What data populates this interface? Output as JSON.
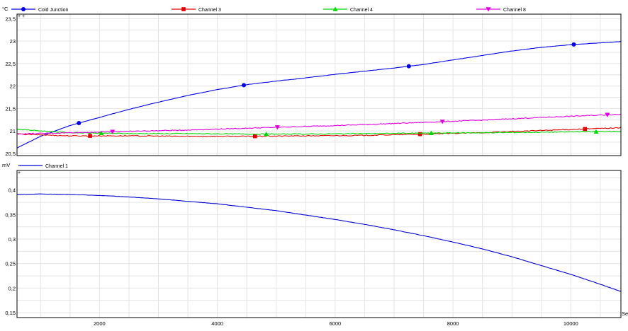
{
  "chart_data": [
    {
      "type": "line",
      "unit": "°C",
      "xlim": [
        600,
        10850
      ],
      "ylim": [
        20.45,
        23.6
      ],
      "y_ticks": [
        20.5,
        21,
        21.5,
        22,
        22.5,
        23,
        23.5
      ],
      "y_tick_labels": [
        "20,5",
        "21",
        "21,5",
        "22",
        "22,5",
        "23",
        "23,5"
      ],
      "grid": true,
      "legend_position": "top",
      "series": [
        {
          "name": "Cold Junction",
          "color": "#0000e0",
          "marker": "circle",
          "x": [
            600,
            1000,
            1500,
            2000,
            2500,
            3000,
            3500,
            4000,
            4500,
            5000,
            5500,
            6000,
            6500,
            7000,
            7500,
            8000,
            8500,
            9000,
            9500,
            10000,
            10500,
            10850
          ],
          "y": [
            20.62,
            20.88,
            21.12,
            21.3,
            21.48,
            21.64,
            21.79,
            21.92,
            22.03,
            22.11,
            22.18,
            22.26,
            22.33,
            22.4,
            22.48,
            22.58,
            22.68,
            22.78,
            22.86,
            22.92,
            22.96,
            22.99
          ]
        },
        {
          "name": "Channel 3",
          "color": "#e00000",
          "marker": "square",
          "x": [
            600,
            1500,
            2500,
            3500,
            4500,
            5500,
            6500,
            7500,
            8500,
            9500,
            10850
          ],
          "y": [
            20.93,
            20.89,
            20.89,
            20.88,
            20.88,
            20.89,
            20.9,
            20.93,
            20.96,
            21.01,
            21.07
          ]
        },
        {
          "name": "Channel 4",
          "color": "#00d800",
          "marker": "triangle-up",
          "x": [
            600,
            1000,
            1500,
            2500,
            3500,
            4500,
            5500,
            6500,
            7500,
            8500,
            9500,
            10850
          ],
          "y": [
            21.04,
            21.0,
            20.96,
            20.94,
            20.94,
            20.93,
            20.93,
            20.94,
            20.95,
            20.96,
            20.97,
            20.99
          ]
        },
        {
          "name": "Channel 8",
          "color": "#e000e0",
          "marker": "triangle-down",
          "x": [
            600,
            1500,
            2500,
            3500,
            4500,
            5500,
            6500,
            7500,
            8500,
            9500,
            10850
          ],
          "y": [
            20.93,
            20.96,
            20.99,
            21.02,
            21.06,
            21.1,
            21.14,
            21.19,
            21.24,
            21.3,
            21.37
          ]
        }
      ]
    },
    {
      "type": "line",
      "unit": "mV",
      "xlim": [
        600,
        10850
      ],
      "ylim": [
        0.14,
        0.44
      ],
      "y_ticks": [
        0.15,
        0.2,
        0.25,
        0.3,
        0.35,
        0.4
      ],
      "y_tick_labels": [
        "0,15",
        "0,2",
        "0,25",
        "0,3",
        "0,35",
        "0,4"
      ],
      "x_ticks": [
        2000,
        4000,
        6000,
        8000,
        10000
      ],
      "x_tick_labels": [
        "2000",
        "4000",
        "6000",
        "8000",
        "10000"
      ],
      "x_unit": "Se",
      "grid": true,
      "legend_position": "top-left",
      "series": [
        {
          "name": "Channel 1",
          "color": "#0000d0",
          "marker": "none",
          "x": [
            600,
            1000,
            1500,
            2000,
            2500,
            3000,
            3500,
            4000,
            4500,
            5000,
            5500,
            6000,
            6500,
            7000,
            7500,
            8000,
            8500,
            9000,
            9500,
            10000,
            10500,
            10850
          ],
          "y": [
            0.391,
            0.392,
            0.391,
            0.389,
            0.386,
            0.382,
            0.377,
            0.372,
            0.365,
            0.358,
            0.349,
            0.34,
            0.33,
            0.319,
            0.307,
            0.294,
            0.28,
            0.264,
            0.246,
            0.228,
            0.208,
            0.193
          ]
        }
      ]
    }
  ]
}
